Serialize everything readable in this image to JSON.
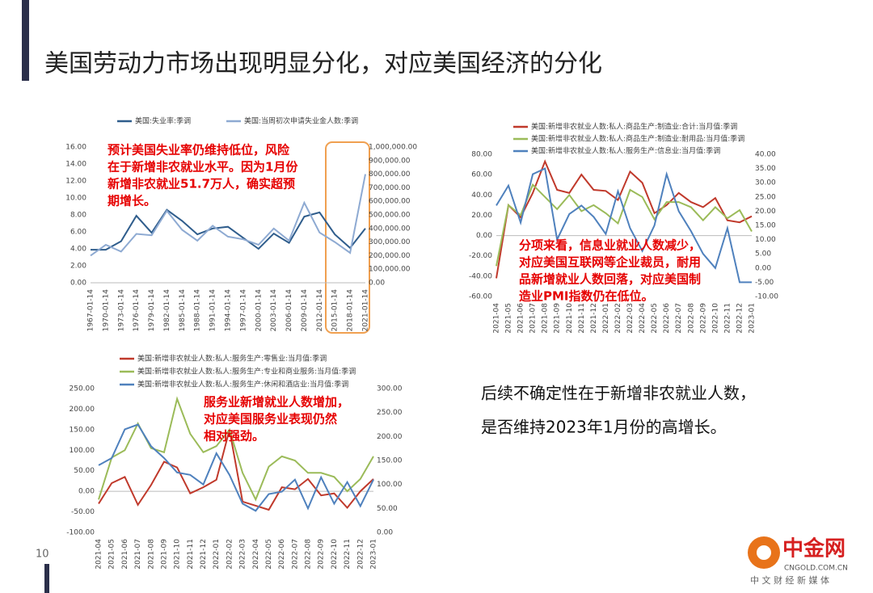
{
  "header": {
    "title": "美国劳动力市场出现明显分化，对应美国经济的分化",
    "page_number": "10"
  },
  "text": {
    "lines": [
      "后续不确定性在于新增非农就业人数，",
      "是否维持2023年1月份的高增长。"
    ]
  },
  "logo": {
    "name": "中金网",
    "url": "CNGOLD.COM.CN",
    "slogan": "中 文 财 经 新 媒 体"
  },
  "chart_data": [
    {
      "type": "line",
      "categories": [
        "1967-01-14",
        "1970-01-14",
        "1973-01-14",
        "1976-01-14",
        "1979-01-14",
        "1982-01-14",
        "1985-01-14",
        "1988-01-14",
        "1991-01-14",
        "1994-01-14",
        "1997-01-14",
        "2000-01-14",
        "2003-01-14",
        "2006-01-14",
        "2009-01-14",
        "2012-01-14",
        "2015-01-14",
        "2018-01-14",
        "2021-01-14"
      ],
      "series": [
        {
          "name": "美国:失业率:季调",
          "color": "#2f5d8c",
          "values": [
            3.9,
            3.9,
            4.9,
            7.9,
            5.9,
            8.6,
            7.3,
            5.7,
            6.4,
            6.6,
            5.3,
            4.0,
            5.8,
            4.7,
            7.8,
            8.3,
            5.7,
            4.1,
            6.4
          ]
        },
        {
          "name": "美国:当周初次申请失业金人数:季调",
          "color": "#8eaad2",
          "axis": "y2",
          "values": [
            200000,
            280000,
            230000,
            360000,
            350000,
            530000,
            390000,
            310000,
            420000,
            340000,
            320000,
            280000,
            400000,
            310000,
            590000,
            370000,
            300000,
            220000,
            800000
          ]
        }
      ],
      "ylim": [
        0,
        16
      ],
      "yticks": [
        {
          "value": 0,
          "label": "0.00"
        },
        {
          "value": 2,
          "label": "2.00"
        },
        {
          "value": 4,
          "label": "4.00"
        },
        {
          "value": 6,
          "label": "6.00"
        },
        {
          "value": 8,
          "label": "8.00"
        },
        {
          "value": 10,
          "label": "10.00"
        },
        {
          "value": 12,
          "label": "12.00"
        },
        {
          "value": 14,
          "label": "14.00"
        },
        {
          "value": 16,
          "label": "16.00"
        }
      ],
      "y2lim": [
        0,
        1000000
      ],
      "y2ticks": [
        {
          "value": 0,
          "label": "0.00"
        },
        {
          "value": 100000,
          "label": "100,000.00"
        },
        {
          "value": 200000,
          "label": "200,000.00"
        },
        {
          "value": 300000,
          "label": "300,000.00"
        },
        {
          "value": 400000,
          "label": "400,000.00"
        },
        {
          "value": 500000,
          "label": "500,000.00"
        },
        {
          "value": 600000,
          "label": "600,000.00"
        },
        {
          "value": 700000,
          "label": "700,000.00"
        },
        {
          "value": 800000,
          "label": "800,000.00"
        },
        {
          "value": 900000,
          "label": "900,000.00"
        },
        {
          "value": 1000000,
          "label": "1,000,000.00"
        }
      ],
      "annotation": [
        "预计美国失业率仍维持低位，风险",
        "在于新增非农就业水平。因为1月份",
        "新增非农就业51.7万人，确实超预",
        "期增长。"
      ]
    },
    {
      "type": "line",
      "categories": [
        "2021-04",
        "2021-05",
        "2021-06",
        "2021-07",
        "2021-08",
        "2021-09",
        "2021-10",
        "2021-11",
        "2021-12",
        "2022-01",
        "2022-02",
        "2022-03",
        "2022-04",
        "2022-05",
        "2022-06",
        "2022-07",
        "2022-08",
        "2022-09",
        "2022-10",
        "2022-11",
        "2022-12",
        "2023-01"
      ],
      "series": [
        {
          "name": "美国:新增非农就业人数:私人:商品生产:制造业:合计:当月值:季调",
          "color": "#c0392b",
          "values": [
            -42,
            30,
            18,
            42,
            73,
            45,
            42,
            60,
            45,
            44,
            35,
            63,
            52,
            22,
            30,
            42,
            33,
            28,
            37,
            15,
            13,
            19
          ]
        },
        {
          "name": "美国:新增非农就业人数:私人:商品生产:制造业:耐用品:当月值:季调",
          "color": "#9bbb59",
          "values": [
            -30,
            30,
            20,
            50,
            38,
            26,
            40,
            24,
            30,
            22,
            12,
            45,
            38,
            16,
            33,
            33,
            28,
            15,
            28,
            17,
            25,
            4
          ]
        },
        {
          "name": "美国:新增非农就业人数:私人:服务生产:信息业:当月值:季调",
          "color": "#4f81bd",
          "axis": "y2",
          "values": [
            22,
            29,
            16,
            33,
            35,
            10,
            19,
            22,
            18,
            12,
            27,
            14,
            6,
            15,
            33,
            20,
            13,
            5,
            0,
            14,
            -5,
            -5
          ]
        }
      ],
      "ylim": [
        -60,
        80
      ],
      "yticks": [
        {
          "value": -60,
          "label": "-60.00"
        },
        {
          "value": -40,
          "label": "-40.00"
        },
        {
          "value": -20,
          "label": "-20.00"
        },
        {
          "value": 0,
          "label": "0.00"
        },
        {
          "value": 20,
          "label": "20.00"
        },
        {
          "value": 40,
          "label": "40.00"
        },
        {
          "value": 60,
          "label": "60.00"
        },
        {
          "value": 80,
          "label": "80.00"
        }
      ],
      "y2lim": [
        -10,
        40
      ],
      "y2ticks": [
        {
          "value": -10,
          "label": "-10.00"
        },
        {
          "value": -5,
          "label": "-5.00"
        },
        {
          "value": 0,
          "label": "0.00"
        },
        {
          "value": 5,
          "label": "5.00"
        },
        {
          "value": 10,
          "label": "10.00"
        },
        {
          "value": 15,
          "label": "15.00"
        },
        {
          "value": 20,
          "label": "20.00"
        },
        {
          "value": 25,
          "label": "25.00"
        },
        {
          "value": 30,
          "label": "30.00"
        },
        {
          "value": 35,
          "label": "35.00"
        },
        {
          "value": 40,
          "label": "40.00"
        }
      ],
      "annotation": [
        "分项来看，信息业就业人数减少，",
        "对应美国互联网等企业裁员，耐用",
        "品新增就业人数回落，对应美国制",
        "造业PMI指数仍在低位。"
      ]
    },
    {
      "type": "line",
      "categories": [
        "2021-04",
        "2021-05",
        "2021-06",
        "2021-07",
        "2021-08",
        "2021-09",
        "2021-10",
        "2021-11",
        "2021-12",
        "2022-01",
        "2022-02",
        "2022-03",
        "2022-04",
        "2022-05",
        "2022-06",
        "2022-07",
        "2022-08",
        "2022-09",
        "2022-10",
        "2022-11",
        "2022-12",
        "2023-01"
      ],
      "series": [
        {
          "name": "美国:新增非农就业人数:私人:服务生产:零售业:当月值:季调",
          "color": "#c0392b",
          "values": [
            -30,
            20,
            35,
            -33,
            15,
            72,
            58,
            -5,
            10,
            28,
            150,
            -25,
            -35,
            -45,
            10,
            5,
            30,
            -10,
            -5,
            -40,
            0,
            30
          ]
        },
        {
          "name": "美国:新增非农就业人数:私人:服务生产:专业和商业服务:当月值:季调",
          "color": "#9bbb59",
          "values": [
            -20,
            82,
            100,
            165,
            105,
            95,
            225,
            140,
            95,
            110,
            150,
            45,
            -20,
            60,
            85,
            75,
            45,
            45,
            35,
            0,
            30,
            85
          ]
        },
        {
          "name": "美国:新增非农就业人数:私人:服务生产:休闲和酒店业:当月值:季调",
          "color": "#4f81bd",
          "axis": "y2",
          "values": [
            140,
            155,
            215,
            225,
            180,
            155,
            125,
            120,
            100,
            165,
            120,
            60,
            45,
            80,
            85,
            110,
            50,
            115,
            60,
            105,
            55,
            110
          ]
        }
      ],
      "ylim": [
        -100,
        250
      ],
      "yticks": [
        {
          "value": -100,
          "label": "-100.00"
        },
        {
          "value": -50,
          "label": "-50.00"
        },
        {
          "value": 0,
          "label": "0.00"
        },
        {
          "value": 50,
          "label": "50.00"
        },
        {
          "value": 100,
          "label": "100.00"
        },
        {
          "value": 150,
          "label": "150.00"
        },
        {
          "value": 200,
          "label": "200.00"
        },
        {
          "value": 250,
          "label": "250.00"
        }
      ],
      "y2lim": [
        0,
        300
      ],
      "y2ticks": [
        {
          "value": 0,
          "label": "0.00"
        },
        {
          "value": 50,
          "label": "50.00"
        },
        {
          "value": 100,
          "label": "100.00"
        },
        {
          "value": 150,
          "label": "150.00"
        },
        {
          "value": 200,
          "label": "200.00"
        },
        {
          "value": 250,
          "label": "250.00"
        },
        {
          "value": 300,
          "label": "300.00"
        }
      ],
      "annotation": [
        "服务业新增就业人数增加，",
        "对应美国服务业表现仍然",
        "相对强劲。"
      ]
    }
  ]
}
